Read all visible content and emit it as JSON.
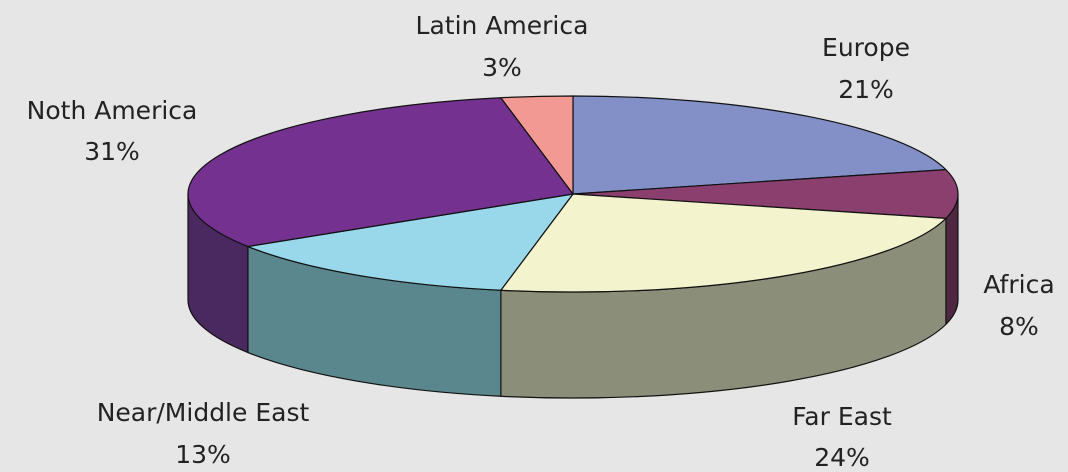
{
  "chart_data": {
    "type": "pie",
    "style": "3d",
    "title": "",
    "unit": "%",
    "slices": [
      {
        "name": "Europe",
        "value": 21,
        "label": "21%",
        "color": "#8390c8",
        "side_color": "#5a6393"
      },
      {
        "name": "Africa",
        "value": 8,
        "label": "8%",
        "color": "#8b3f6f",
        "side_color": "#4e2742"
      },
      {
        "name": "Far East",
        "value": 24,
        "label": "24%",
        "color": "#f3f4cd",
        "side_color": "#8b8f7a"
      },
      {
        "name": "Near/Middle East",
        "value": 13,
        "label": "13%",
        "color": "#98d8ea",
        "side_color": "#5a878d"
      },
      {
        "name": "Noth America",
        "value": 31,
        "label": "31%",
        "color": "#74318f",
        "side_color": "#4a2860"
      },
      {
        "name": "Latin America",
        "value": 3,
        "label": "3%",
        "color": "#f39993",
        "side_color": "#a8645f"
      }
    ]
  }
}
